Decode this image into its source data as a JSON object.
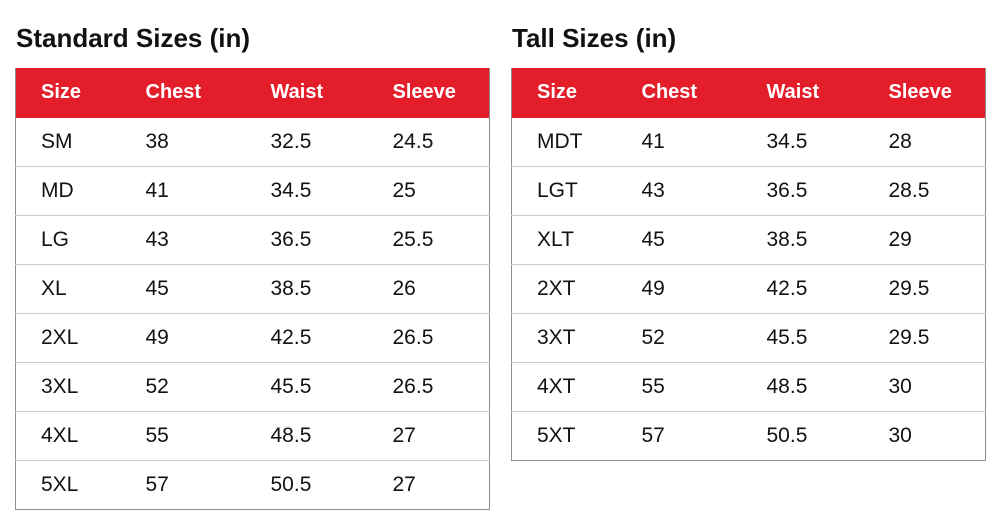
{
  "colors": {
    "page_bg": "#ffffff",
    "header_bg": "#e31e2a",
    "header_text": "#ffffff",
    "title_text": "#111111",
    "cell_text": "#121212",
    "outer_border": "#8e8e8e",
    "row_border": "#cbcbcb"
  },
  "chart_data": [
    {
      "type": "table",
      "title": "Standard Sizes (in)",
      "columns": [
        "Size",
        "Chest",
        "Waist",
        "Sleeve"
      ],
      "rows": [
        [
          "SM",
          38,
          32.5,
          24.5
        ],
        [
          "MD",
          41,
          34.5,
          25
        ],
        [
          "LG",
          43,
          36.5,
          25.5
        ],
        [
          "XL",
          45,
          38.5,
          26
        ],
        [
          "2XL",
          49,
          42.5,
          26.5
        ],
        [
          "3XL",
          52,
          45.5,
          26.5
        ],
        [
          "4XL",
          55,
          48.5,
          27
        ],
        [
          "5XL",
          57,
          50.5,
          27
        ]
      ]
    },
    {
      "type": "table",
      "title": "Tall Sizes (in)",
      "columns": [
        "Size",
        "Chest",
        "Waist",
        "Sleeve"
      ],
      "rows": [
        [
          "MDT",
          41,
          34.5,
          28
        ],
        [
          "LGT",
          43,
          36.5,
          28.5
        ],
        [
          "XLT",
          45,
          38.5,
          29
        ],
        [
          "2XT",
          49,
          42.5,
          29.5
        ],
        [
          "3XT",
          52,
          45.5,
          29.5
        ],
        [
          "4XT",
          55,
          48.5,
          30
        ],
        [
          "5XT",
          57,
          50.5,
          30
        ]
      ]
    }
  ]
}
